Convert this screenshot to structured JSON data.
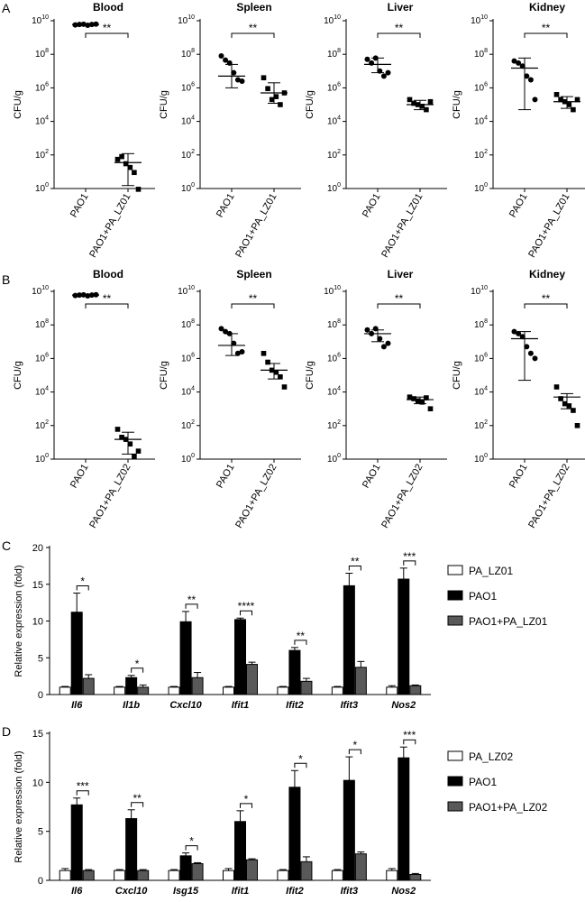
{
  "chart_data": [
    {
      "panel": "A",
      "type": "scatter",
      "title": "Blood",
      "ylabel": "CFU/g",
      "yscale": "log",
      "ylim": [
        1,
        10000000000
      ],
      "categories": [
        "PAO1",
        "PAO1+PA_LZ01"
      ],
      "points": [
        [
          5600000000.0,
          6000000000.0,
          6200000000.0,
          5400000000.0,
          6000000000.0,
          6300000000.0
        ],
        [
          55,
          80,
          30,
          18,
          9,
          0.9
        ]
      ],
      "mean": [
        6000000000.0,
        35
      ],
      "err": [
        [
          5400000000.0,
          6500000000.0
        ],
        [
          1.5,
          120
        ]
      ],
      "significance": "**"
    },
    {
      "panel": "A",
      "type": "scatter",
      "title": "Spleen",
      "ylabel": "CFU/g",
      "yscale": "log",
      "ylim": [
        1,
        10000000000
      ],
      "categories": [
        "PAO1",
        "PAO1+PA_LZ01"
      ],
      "points": [
        [
          80000000.0,
          45000000.0,
          30000000.0,
          8000000.0,
          3000000.0,
          2500000.0
        ],
        [
          4000000.0,
          900000.0,
          200000.0,
          300000.0,
          100000.0,
          500000.0
        ]
      ],
      "mean": [
        5000000.0,
        500000.0
      ],
      "err": [
        [
          1000000.0,
          25000000.0
        ],
        [
          120000.0,
          2000000.0
        ]
      ],
      "significance": "**"
    },
    {
      "panel": "A",
      "type": "scatter",
      "title": "Liver",
      "ylabel": "CFU/g",
      "yscale": "log",
      "ylim": [
        1,
        10000000000
      ],
      "categories": [
        "PAO1",
        "PAO1+PA_LZ01"
      ],
      "points": [
        [
          50000000.0,
          30000000.0,
          60000000.0,
          10000000.0,
          5000000.0,
          8000000.0
        ],
        [
          200000.0,
          120000.0,
          100000.0,
          80000.0,
          50000.0,
          150000.0
        ]
      ],
      "mean": [
        25000000.0,
        100000.0
      ],
      "err": [
        [
          8000000.0,
          60000000.0
        ],
        [
          50000.0,
          180000.0
        ]
      ],
      "significance": "**"
    },
    {
      "panel": "A",
      "type": "scatter",
      "title": "Kidney",
      "ylabel": "CFU/g",
      "yscale": "log",
      "ylim": [
        1,
        10000000000
      ],
      "categories": [
        "PAO1",
        "PAO1+PA_LZ01"
      ],
      "points": [
        [
          40000000.0,
          30000000.0,
          20000000.0,
          5000000.0,
          3000000.0,
          200000.0
        ],
        [
          400000.0,
          200000.0,
          150000.0,
          100000.0,
          50000.0,
          200000.0
        ]
      ],
      "mean": [
        15000000.0,
        150000.0
      ],
      "err": [
        [
          50000.0,
          60000000.0
        ],
        [
          60000.0,
          300000.0
        ]
      ],
      "significance": "**"
    },
    {
      "panel": "B",
      "type": "scatter",
      "title": "Blood",
      "ylabel": "CFU/g",
      "yscale": "log",
      "ylim": [
        1,
        10000000000
      ],
      "categories": [
        "PAO1",
        "PAO1+PA_LZ02"
      ],
      "points": [
        [
          5600000000.0,
          6000000000.0,
          6200000000.0,
          5400000000.0,
          6000000000.0,
          6300000000.0
        ],
        [
          60,
          20,
          15,
          8,
          1.5,
          3
        ]
      ],
      "mean": [
        6000000000.0,
        15
      ],
      "err": [
        [
          5400000000.0,
          6500000000.0
        ],
        [
          2,
          40
        ]
      ],
      "significance": "**"
    },
    {
      "panel": "B",
      "type": "scatter",
      "title": "Spleen",
      "ylabel": "CFU/g",
      "yscale": "log",
      "ylim": [
        1,
        10000000000
      ],
      "categories": [
        "PAO1",
        "PAO1+PA_LZ02"
      ],
      "points": [
        [
          60000000.0,
          40000000.0,
          30000000.0,
          8000000.0,
          2000000.0,
          2500000.0
        ],
        [
          2000000.0,
          600000.0,
          200000.0,
          150000.0,
          80000.0,
          20000.0
        ]
      ],
      "mean": [
        6000000.0,
        200000.0
      ],
      "err": [
        [
          1500000.0,
          30000000.0
        ],
        [
          60000.0,
          500000.0
        ]
      ],
      "significance": "**"
    },
    {
      "panel": "B",
      "type": "scatter",
      "title": "Liver",
      "ylabel": "CFU/g",
      "yscale": "log",
      "ylim": [
        1,
        10000000000
      ],
      "categories": [
        "PAO1",
        "PAO1+PA_LZ02"
      ],
      "points": [
        [
          50000000.0,
          30000000.0,
          60000000.0,
          15000000.0,
          5000000.0,
          8000000.0
        ],
        [
          5000.0,
          4000.0,
          3000.0,
          2500.0,
          4500.0,
          1000.0
        ]
      ],
      "mean": [
        30000000.0,
        3500.0
      ],
      "err": [
        [
          10000000.0,
          50000000.0
        ],
        [
          2000.0,
          5000.0
        ]
      ],
      "significance": "**"
    },
    {
      "panel": "B",
      "type": "scatter",
      "title": "Kidney",
      "ylabel": "CFU/g",
      "yscale": "log",
      "ylim": [
        1,
        10000000000
      ],
      "categories": [
        "PAO1",
        "PAO1+PA_LZ02"
      ],
      "points": [
        [
          40000000.0,
          30000000.0,
          20000000.0,
          5000000.0,
          2000000.0,
          1000000.0
        ],
        [
          20000.0,
          4000.0,
          2000.0,
          1500.0,
          800.0,
          100.0
        ]
      ],
      "mean": [
        15000000.0,
        5000.0
      ],
      "err": [
        [
          50000.0,
          40000000.0
        ],
        [
          1000.0,
          8000.0
        ]
      ],
      "significance": "**"
    },
    {
      "panel": "C",
      "type": "bar",
      "ylabel": "Relative expression (fold)",
      "ylim": [
        0,
        20
      ],
      "yticks": [
        0,
        5,
        10,
        15,
        20
      ],
      "categories": [
        "Il6",
        "Il1b",
        "Cxcl10",
        "Ifit1",
        "Ifit2",
        "Ifit3",
        "Nos2"
      ],
      "series": [
        {
          "name": "PA_LZ01",
          "color": "#ffffff",
          "values": [
            1.0,
            1.0,
            1.0,
            1.0,
            1.0,
            1.0,
            1.0
          ],
          "err": [
            0.1,
            0.1,
            0.1,
            0.1,
            0.1,
            0.1,
            0.2
          ]
        },
        {
          "name": "PAO1",
          "color": "#000000",
          "values": [
            11.2,
            2.3,
            9.9,
            10.2,
            6.0,
            14.8,
            15.7
          ],
          "err": [
            2.6,
            0.3,
            1.4,
            0.2,
            0.4,
            1.7,
            1.5
          ]
        },
        {
          "name": "PAO1+PA_LZ01",
          "color": "#595959",
          "values": [
            2.2,
            1.0,
            2.3,
            4.1,
            1.8,
            3.7,
            1.2
          ],
          "err": [
            0.5,
            0.3,
            0.7,
            0.3,
            0.4,
            0.8,
            0.1
          ]
        }
      ],
      "significance": [
        "*",
        "*",
        "**",
        "****",
        "**",
        "**",
        "***"
      ],
      "legend_position": "right"
    },
    {
      "panel": "D",
      "type": "bar",
      "ylabel": "Relative expression (fold)",
      "ylim": [
        0,
        15
      ],
      "yticks": [
        0,
        5,
        10,
        15
      ],
      "categories": [
        "Il6",
        "Cxcl10",
        "Isg15",
        "Ifit1",
        "Ifit2",
        "Ifit3",
        "Nos2"
      ],
      "series": [
        {
          "name": "PA_LZ02",
          "color": "#ffffff",
          "values": [
            1.0,
            1.0,
            1.0,
            1.0,
            1.0,
            1.0,
            1.0
          ],
          "err": [
            0.2,
            0.1,
            0.1,
            0.2,
            0.1,
            0.1,
            0.2
          ]
        },
        {
          "name": "PAO1",
          "color": "#000000",
          "values": [
            7.7,
            6.3,
            2.5,
            6.0,
            9.5,
            10.2,
            12.5
          ],
          "err": [
            0.7,
            0.9,
            0.3,
            1.1,
            1.7,
            2.4,
            1.1
          ]
        },
        {
          "name": "PAO1+PA_LZ02",
          "color": "#595959",
          "values": [
            1.0,
            1.0,
            1.7,
            2.1,
            1.9,
            2.7,
            0.6
          ],
          "err": [
            0.1,
            0.1,
            0.1,
            0.1,
            0.5,
            0.2,
            0.1
          ]
        }
      ],
      "significance": [
        "***",
        "**",
        "*",
        "*",
        "*",
        "*",
        "***"
      ],
      "legend_position": "right"
    }
  ]
}
